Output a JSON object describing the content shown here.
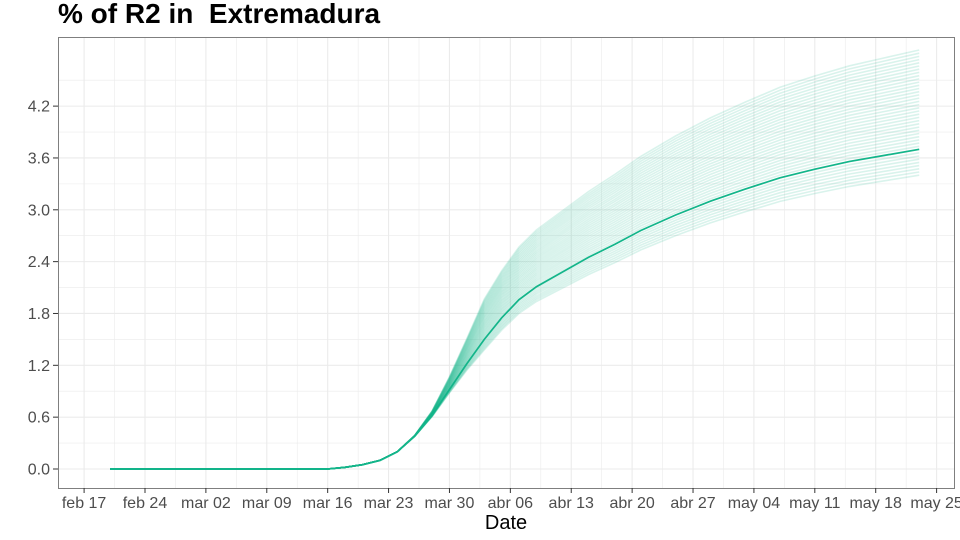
{
  "chart_data": {
    "type": "line",
    "title": "% of R2 in  Extremadura",
    "xlabel": "Date",
    "ylabel": "",
    "x_ticks": [
      "feb 17",
      "feb 24",
      "mar 02",
      "mar 09",
      "mar 16",
      "mar 23",
      "mar 30",
      "abr 06",
      "abr 13",
      "abr 20",
      "abr 27",
      "may 04",
      "may 11",
      "may 18",
      "may 25"
    ],
    "y_ticks": [
      "0.0",
      "0.6",
      "1.2",
      "1.8",
      "2.4",
      "3.0",
      "3.6",
      "4.2"
    ],
    "xlim": [
      "2020-02-14",
      "2020-05-27"
    ],
    "ylim": [
      -0.22,
      5.0
    ],
    "grid": true,
    "legend": "none",
    "colors": {
      "series": "#13b58a",
      "grid": "#ebebeb",
      "panel_border": "#7f7f7f"
    },
    "main_series": {
      "x": [
        "2020-02-20",
        "2020-03-12",
        "2020-03-16",
        "2020-03-18",
        "2020-03-20",
        "2020-03-22",
        "2020-03-24",
        "2020-03-26",
        "2020-03-28",
        "2020-03-30",
        "2020-04-01",
        "2020-04-03",
        "2020-04-05",
        "2020-04-07",
        "2020-04-09",
        "2020-04-12",
        "2020-04-15",
        "2020-04-18",
        "2020-04-21",
        "2020-04-25",
        "2020-04-29",
        "2020-05-03",
        "2020-05-07",
        "2020-05-11",
        "2020-05-15",
        "2020-05-19",
        "2020-05-23"
      ],
      "y": [
        0.0,
        0.0,
        0.0,
        0.02,
        0.05,
        0.1,
        0.2,
        0.38,
        0.62,
        0.92,
        1.22,
        1.5,
        1.75,
        1.96,
        2.11,
        2.28,
        2.45,
        2.6,
        2.76,
        2.94,
        3.1,
        3.24,
        3.37,
        3.47,
        3.56,
        3.63,
        3.7
      ]
    },
    "ensemble": {
      "count": 40,
      "final_min": 3.4,
      "final_max": 4.85
    }
  }
}
